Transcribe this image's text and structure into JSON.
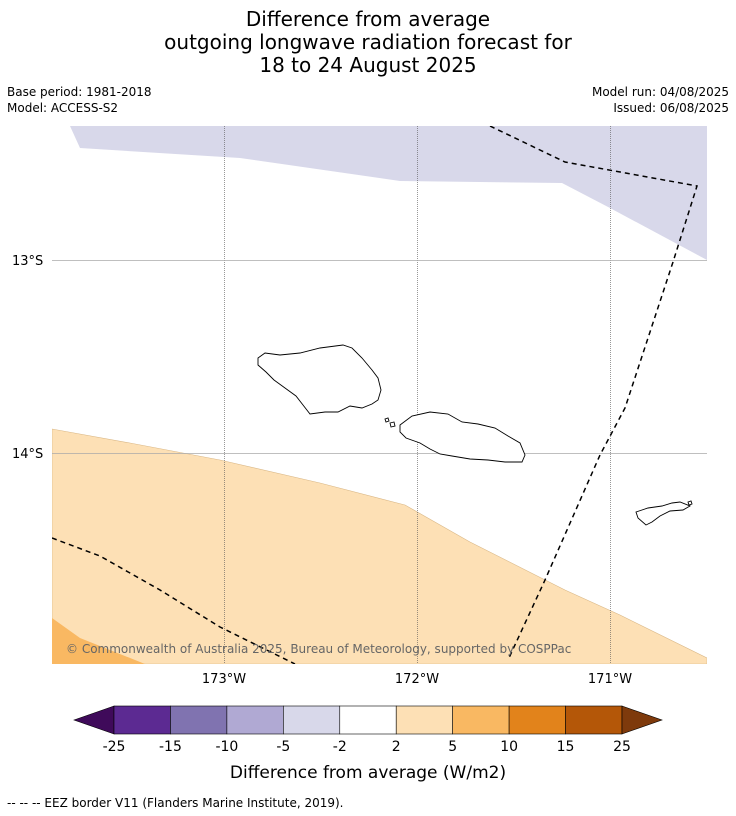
{
  "title": {
    "line1": "Difference from average",
    "line2": "outgoing longwave radiation forecast for",
    "line3": "18 to 24 August 2025"
  },
  "meta": {
    "base_period": "Base period: 1981-2018",
    "model": "Model: ACCESS-S2",
    "model_run": "Model run: 04/08/2025",
    "issued": "Issued: 06/08/2025"
  },
  "map": {
    "lon_ticks": [
      "173°W",
      "172°W",
      "171°W"
    ],
    "lat_ticks": [
      "13°S",
      "14°S"
    ],
    "copyright": "© Commonwealth of Australia 2025, Bureau of Meteorology, supported by COSPPac"
  },
  "legend": {
    "title": "Difference from average (W/m2)",
    "ticks": [
      "-25",
      "-15",
      "-10",
      "-5",
      "-2",
      "2",
      "5",
      "10",
      "15",
      "25"
    ],
    "colors": [
      "#3f0a5a",
      "#5c2a92",
      "#8073b0",
      "#b0a9d3",
      "#d8d8ea",
      "#ffffff",
      "#fde0b5",
      "#f9b862",
      "#e2831b",
      "#b45708",
      "#7e3a0c"
    ]
  },
  "footer": {
    "eez_note": "--  --  -- EEZ border V11 (Flanders Marine Institute, 2019)."
  }
}
